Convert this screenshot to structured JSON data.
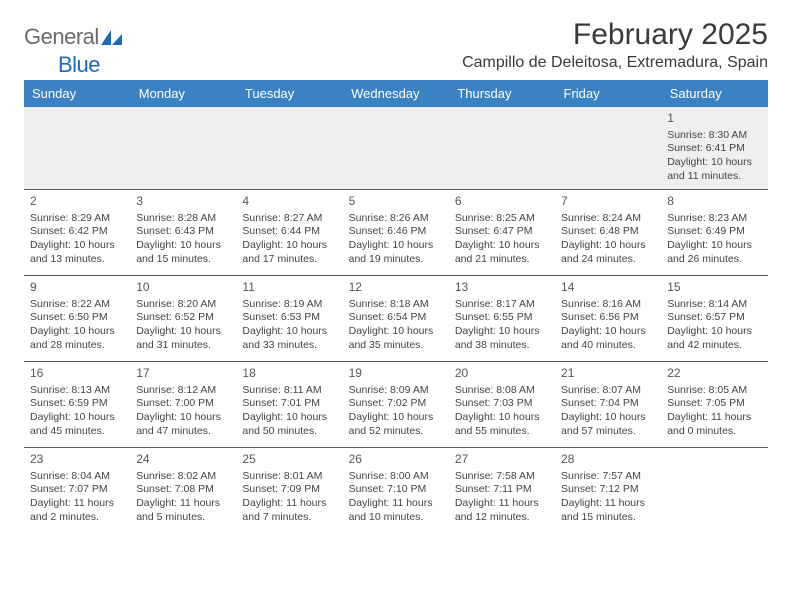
{
  "brand": {
    "word1": "General",
    "word2": "Blue"
  },
  "title": "February 2025",
  "location": "Campillo de Deleitosa, Extremadura, Spain",
  "colors": {
    "header_bg": "#3a82c4",
    "header_text": "#ffffff",
    "row_border": "#5b5b5b",
    "firstrow_bg": "#efefef",
    "text": "#444444",
    "brand_gray": "#6b6b6b",
    "brand_blue": "#1f6bb7",
    "page_bg": "#ffffff"
  },
  "fonts": {
    "title_pt": 30,
    "location_pt": 16,
    "dayhead_pt": 13,
    "cell_pt": 10.5,
    "daynum_pt": 12
  },
  "dayHeaders": [
    "Sunday",
    "Monday",
    "Tuesday",
    "Wednesday",
    "Thursday",
    "Friday",
    "Saturday"
  ],
  "weeks": [
    [
      null,
      null,
      null,
      null,
      null,
      null,
      {
        "n": "1",
        "sr": "8:30 AM",
        "ss": "6:41 PM",
        "dl1": "10 hours",
        "dl2": "and 11 minutes."
      }
    ],
    [
      {
        "n": "2",
        "sr": "8:29 AM",
        "ss": "6:42 PM",
        "dl1": "10 hours",
        "dl2": "and 13 minutes."
      },
      {
        "n": "3",
        "sr": "8:28 AM",
        "ss": "6:43 PM",
        "dl1": "10 hours",
        "dl2": "and 15 minutes."
      },
      {
        "n": "4",
        "sr": "8:27 AM",
        "ss": "6:44 PM",
        "dl1": "10 hours",
        "dl2": "and 17 minutes."
      },
      {
        "n": "5",
        "sr": "8:26 AM",
        "ss": "6:46 PM",
        "dl1": "10 hours",
        "dl2": "and 19 minutes."
      },
      {
        "n": "6",
        "sr": "8:25 AM",
        "ss": "6:47 PM",
        "dl1": "10 hours",
        "dl2": "and 21 minutes."
      },
      {
        "n": "7",
        "sr": "8:24 AM",
        "ss": "6:48 PM",
        "dl1": "10 hours",
        "dl2": "and 24 minutes."
      },
      {
        "n": "8",
        "sr": "8:23 AM",
        "ss": "6:49 PM",
        "dl1": "10 hours",
        "dl2": "and 26 minutes."
      }
    ],
    [
      {
        "n": "9",
        "sr": "8:22 AM",
        "ss": "6:50 PM",
        "dl1": "10 hours",
        "dl2": "and 28 minutes."
      },
      {
        "n": "10",
        "sr": "8:20 AM",
        "ss": "6:52 PM",
        "dl1": "10 hours",
        "dl2": "and 31 minutes."
      },
      {
        "n": "11",
        "sr": "8:19 AM",
        "ss": "6:53 PM",
        "dl1": "10 hours",
        "dl2": "and 33 minutes."
      },
      {
        "n": "12",
        "sr": "8:18 AM",
        "ss": "6:54 PM",
        "dl1": "10 hours",
        "dl2": "and 35 minutes."
      },
      {
        "n": "13",
        "sr": "8:17 AM",
        "ss": "6:55 PM",
        "dl1": "10 hours",
        "dl2": "and 38 minutes."
      },
      {
        "n": "14",
        "sr": "8:16 AM",
        "ss": "6:56 PM",
        "dl1": "10 hours",
        "dl2": "and 40 minutes."
      },
      {
        "n": "15",
        "sr": "8:14 AM",
        "ss": "6:57 PM",
        "dl1": "10 hours",
        "dl2": "and 42 minutes."
      }
    ],
    [
      {
        "n": "16",
        "sr": "8:13 AM",
        "ss": "6:59 PM",
        "dl1": "10 hours",
        "dl2": "and 45 minutes."
      },
      {
        "n": "17",
        "sr": "8:12 AM",
        "ss": "7:00 PM",
        "dl1": "10 hours",
        "dl2": "and 47 minutes."
      },
      {
        "n": "18",
        "sr": "8:11 AM",
        "ss": "7:01 PM",
        "dl1": "10 hours",
        "dl2": "and 50 minutes."
      },
      {
        "n": "19",
        "sr": "8:09 AM",
        "ss": "7:02 PM",
        "dl1": "10 hours",
        "dl2": "and 52 minutes."
      },
      {
        "n": "20",
        "sr": "8:08 AM",
        "ss": "7:03 PM",
        "dl1": "10 hours",
        "dl2": "and 55 minutes."
      },
      {
        "n": "21",
        "sr": "8:07 AM",
        "ss": "7:04 PM",
        "dl1": "10 hours",
        "dl2": "and 57 minutes."
      },
      {
        "n": "22",
        "sr": "8:05 AM",
        "ss": "7:05 PM",
        "dl1": "11 hours",
        "dl2": "and 0 minutes."
      }
    ],
    [
      {
        "n": "23",
        "sr": "8:04 AM",
        "ss": "7:07 PM",
        "dl1": "11 hours",
        "dl2": "and 2 minutes."
      },
      {
        "n": "24",
        "sr": "8:02 AM",
        "ss": "7:08 PM",
        "dl1": "11 hours",
        "dl2": "and 5 minutes."
      },
      {
        "n": "25",
        "sr": "8:01 AM",
        "ss": "7:09 PM",
        "dl1": "11 hours",
        "dl2": "and 7 minutes."
      },
      {
        "n": "26",
        "sr": "8:00 AM",
        "ss": "7:10 PM",
        "dl1": "11 hours",
        "dl2": "and 10 minutes."
      },
      {
        "n": "27",
        "sr": "7:58 AM",
        "ss": "7:11 PM",
        "dl1": "11 hours",
        "dl2": "and 12 minutes."
      },
      {
        "n": "28",
        "sr": "7:57 AM",
        "ss": "7:12 PM",
        "dl1": "11 hours",
        "dl2": "and 15 minutes."
      },
      null
    ]
  ],
  "labels": {
    "sunrise_prefix": "Sunrise: ",
    "sunset_prefix": "Sunset: ",
    "daylight_prefix": "Daylight: "
  }
}
